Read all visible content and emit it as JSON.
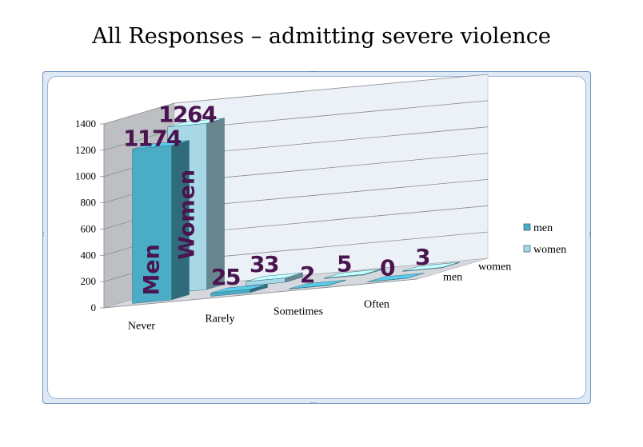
{
  "slide": {
    "title": "All Responses – admitting severe violence"
  },
  "chart_data": {
    "type": "bar",
    "categories": [
      "Never",
      "Rarely",
      "Sometimes",
      "Often"
    ],
    "series": [
      {
        "name": "men",
        "values": [
          1174,
          25,
          2,
          0
        ]
      },
      {
        "name": "women",
        "values": [
          1264,
          33,
          5,
          3
        ]
      }
    ],
    "bar_labels": {
      "men": "Men",
      "women": "Women"
    },
    "yticks": [
      "0",
      "200",
      "400",
      "600",
      "800",
      "1000",
      "1200",
      "1400"
    ],
    "ylim": [
      0,
      1400
    ],
    "legend_position": "right",
    "grid": true,
    "projection": "3d",
    "colors": {
      "men": "#4bacc6",
      "women": "#a8d8e6"
    }
  }
}
